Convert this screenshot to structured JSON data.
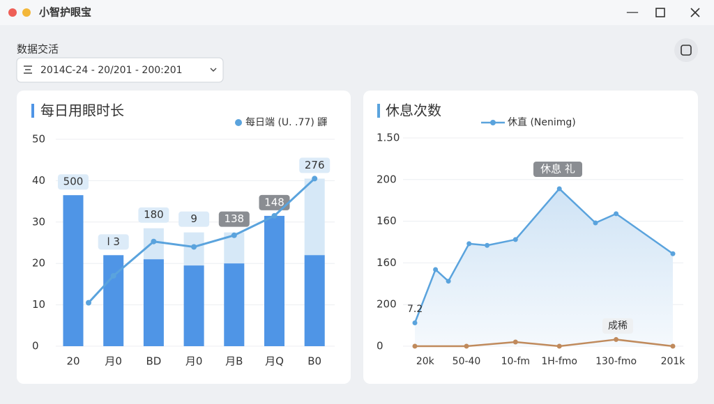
{
  "window": {
    "title": "小智护眼宝"
  },
  "filter": {
    "label": "数据交活",
    "range": "2014C-24 - 20/201 - 200:201"
  },
  "chart_data": [
    {
      "type": "bar",
      "title": "每日用眼时长",
      "categories": [
        "20",
        "月0",
        "BD",
        "月0",
        "月B",
        "月Q",
        "B0"
      ],
      "series": [
        {
          "color": "#4f95e6",
          "values": [
            36.5,
            22,
            21,
            19.5,
            20,
            31.5,
            22
          ]
        },
        {
          "color": "#d6e8f7",
          "values": [
            null,
            null,
            28.5,
            27.5,
            27.5,
            null,
            40.5
          ]
        },
        {
          "name": "每日端 (U. .77) 鼲",
          "color": "#5aa3dd",
          "values": [
            10.5,
            17,
            25.3,
            24,
            26.8,
            31.5,
            40.5
          ]
        }
      ],
      "callouts": [
        "500",
        "l 3",
        "180",
        "9",
        "138",
        "148",
        "276"
      ],
      "ylim": [
        0,
        50
      ],
      "yticks": [
        0,
        10,
        20,
        30,
        40,
        50
      ],
      "grid": true
    },
    {
      "type": "line",
      "title": "休息次数",
      "x": [
        0,
        8,
        13,
        21,
        28,
        39,
        56,
        70,
        78,
        100
      ],
      "series": [
        {
          "name": "休直 (Nenimg)",
          "color": "#5aa3dd",
          "values": [
            28,
            92,
            78,
            123,
            121,
            128,
            189,
            148,
            159,
            111
          ]
        },
        {
          "color": "#c08a5c",
          "x": [
            0,
            20,
            39,
            56,
            78,
            100
          ],
          "values": [
            0,
            0,
            5,
            0,
            8,
            0
          ]
        }
      ],
      "annotations": [
        "7.2",
        "休息 礼",
        "成稀"
      ],
      "xlim": [
        0,
        100
      ],
      "xticks": [
        {
          "value": 4,
          "label": "20k"
        },
        {
          "value": 20,
          "label": "50-40"
        },
        {
          "value": 39,
          "label": "10-fm"
        },
        {
          "value": 56,
          "label": "1H-fmo"
        },
        {
          "value": 78,
          "label": "130-fmo"
        },
        {
          "value": 100,
          "label": "201k"
        }
      ],
      "ylim": [
        0,
        250
      ],
      "yticks": [
        0,
        {
          "value": 50,
          "label": "200"
        },
        {
          "value": 100,
          "label": "160"
        },
        {
          "value": 150,
          "label": "160"
        },
        200,
        {
          "value": 250,
          "label": "1.50"
        }
      ],
      "grid": true
    }
  ]
}
